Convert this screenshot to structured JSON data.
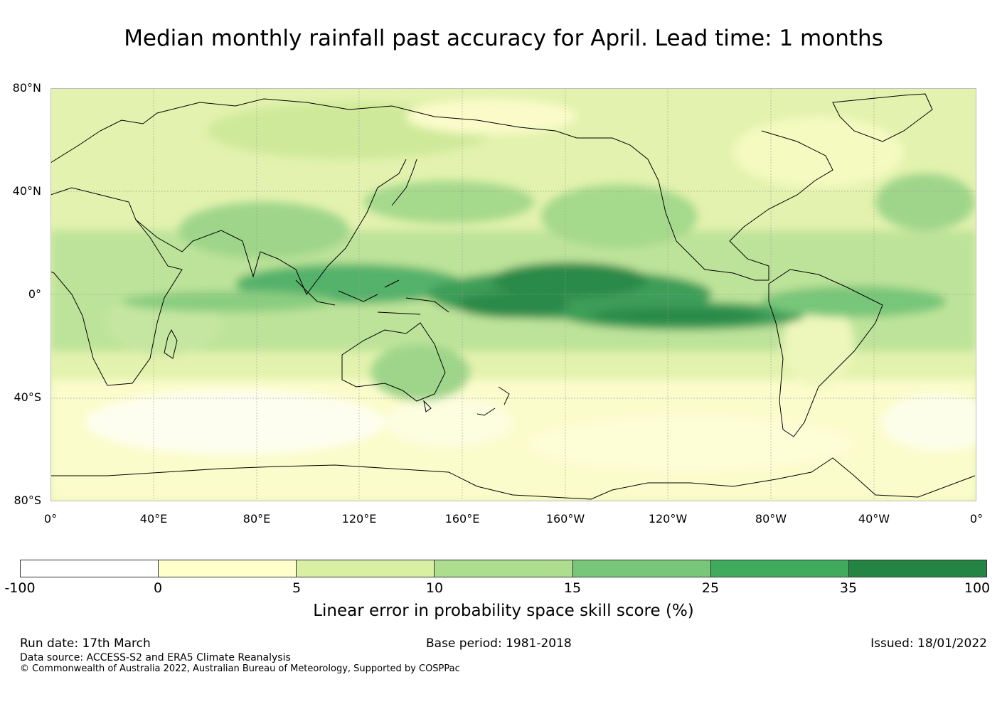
{
  "title": "Median monthly rainfall past accuracy for April. Lead time: 1 months",
  "map": {
    "lat_labels": [
      "80°N",
      "40°N",
      "0°",
      "40°S",
      "80°S"
    ],
    "lon_labels": [
      "0°",
      "40°E",
      "80°E",
      "120°E",
      "160°E",
      "160°W",
      "120°W",
      "80°W",
      "40°W",
      "0°"
    ]
  },
  "colorbar": {
    "ticks": [
      "-100",
      "0",
      "5",
      "10",
      "15",
      "25",
      "35",
      "100"
    ],
    "colors": [
      "#ffffff",
      "#ffffcc",
      "#d9f0a3",
      "#addd8e",
      "#78c679",
      "#41ab5d",
      "#238443"
    ],
    "label": "Linear error in probability space skill score (%)"
  },
  "footer": {
    "run_date": "Run date: 17th March",
    "base_period": "Base period: 1981-2018",
    "issued": "Issued: 18/01/2022",
    "data_source": "Data source: ACCESS-S2 and ERA5 Climate Reanalysis",
    "copyright": "© Commonwealth of Australia 2022, Australian Bureau of Meteorology, Supported by COSPPac"
  }
}
